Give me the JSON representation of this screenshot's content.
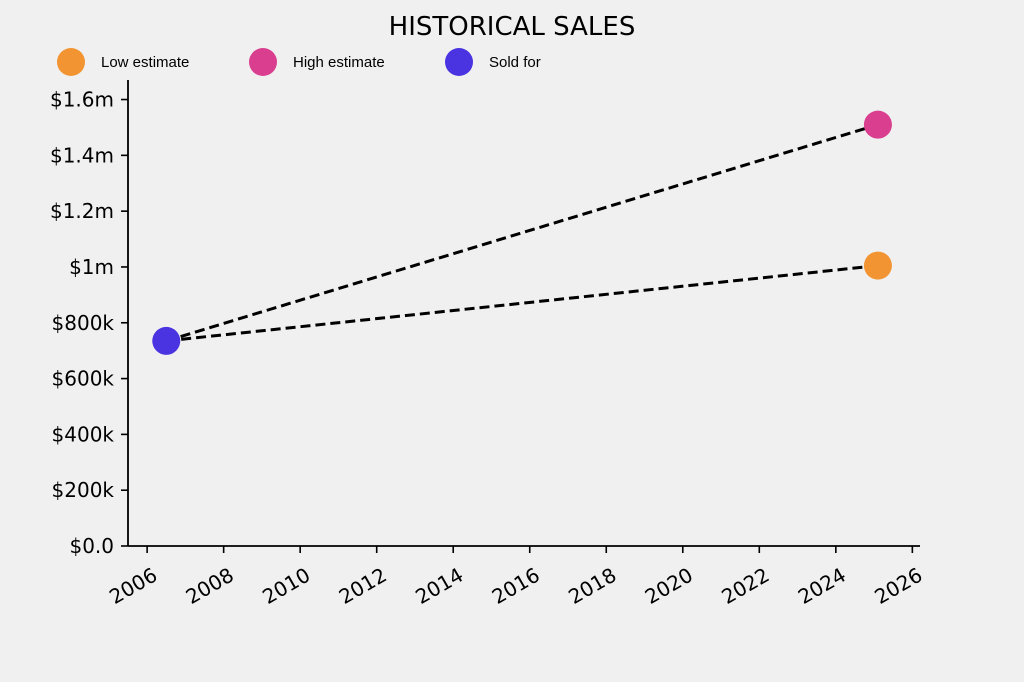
{
  "chart_data": {
    "type": "scatter",
    "title": "HISTORICAL SALES",
    "xlabel": "",
    "ylabel": "",
    "xlim": [
      2005.5,
      2026.2
    ],
    "ylim": [
      0,
      1670000
    ],
    "x_ticks": [
      2006,
      2008,
      2010,
      2012,
      2014,
      2016,
      2018,
      2020,
      2022,
      2024,
      2026
    ],
    "x_tick_labels": [
      "2006",
      "2008",
      "2010",
      "2012",
      "2014",
      "2016",
      "2018",
      "2020",
      "2022",
      "2024",
      "2026"
    ],
    "y_ticks": [
      0,
      200000,
      400000,
      600000,
      800000,
      1000000,
      1200000,
      1400000,
      1600000
    ],
    "y_tick_labels": [
      "$0.0",
      "$200k",
      "$400k",
      "$600k",
      "$800k",
      "$1m",
      "$1.2m",
      "$1.4m",
      "$1.6m"
    ],
    "grid": false,
    "legend_position": "top-left",
    "series": [
      {
        "name": "Low estimate",
        "color": "#f39433",
        "points": [
          [
            2025.1,
            1005000
          ]
        ]
      },
      {
        "name": "High estimate",
        "color": "#da3e8f",
        "points": [
          [
            2025.1,
            1510000
          ]
        ]
      },
      {
        "name": "Sold for",
        "color": "#4a33e0",
        "points": [
          [
            2006.5,
            735000
          ]
        ]
      }
    ],
    "dashed_lines": [
      {
        "from": [
          2006.5,
          735000
        ],
        "to": [
          2025.1,
          1005000
        ]
      },
      {
        "from": [
          2006.5,
          735000
        ],
        "to": [
          2025.1,
          1510000
        ]
      }
    ]
  }
}
